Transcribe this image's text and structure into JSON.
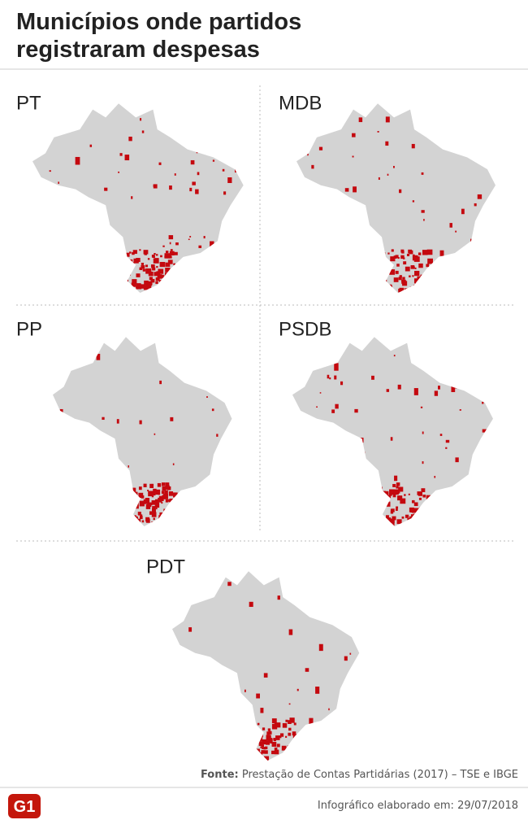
{
  "header": {
    "title_lines": [
      "Municípios onde partidos",
      "registraram despesas"
    ]
  },
  "maps": [
    {
      "label": "PT"
    },
    {
      "label": "MDB"
    },
    {
      "label": "PP"
    },
    {
      "label": "PSDB"
    },
    {
      "label": "PDT"
    }
  ],
  "footer": {
    "source_label": "Fonte:",
    "source": "Prestação de Contas Partidárias (2017) – TSE e IBGE",
    "logo": "G1",
    "credit": "Infográfico elaborado em: 29/07/2018"
  }
}
